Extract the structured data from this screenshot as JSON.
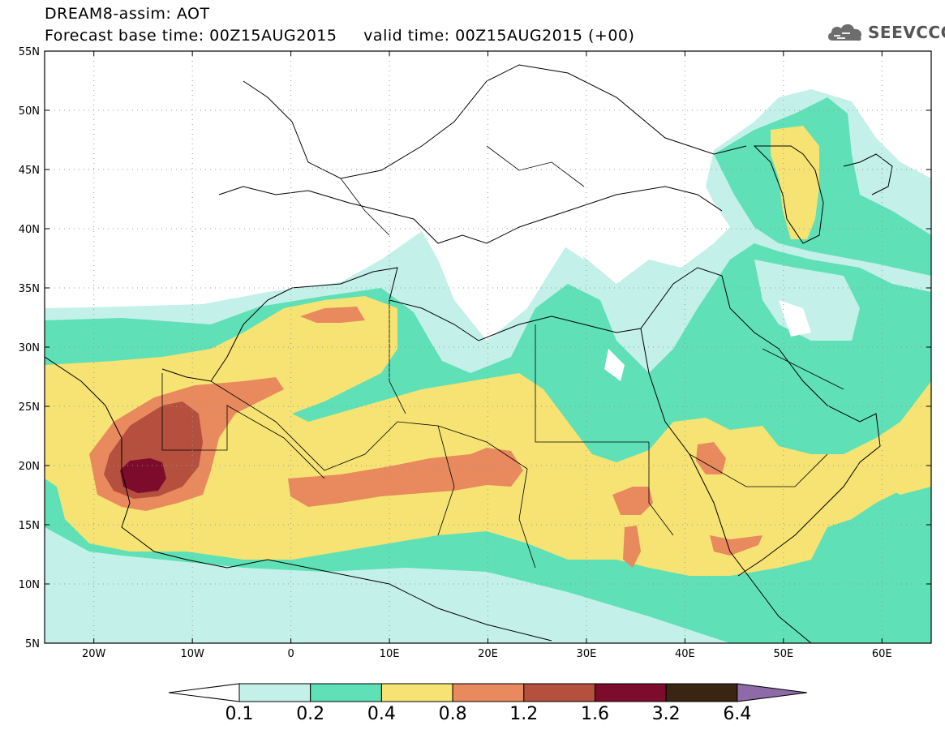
{
  "header": {
    "title_line1": "DREAM8-assim: AOT",
    "title_line2": "Forecast base time: 00Z15AUG2015     valid time: 00Z15AUG2015 (+00)",
    "logo_text": "SEEVCCC",
    "logo_icon": "cloud-icon"
  },
  "map": {
    "lon_range": [
      -25,
      65
    ],
    "lat_range": [
      5,
      55
    ],
    "lat_ticks": [
      "5N",
      "10N",
      "15N",
      "20N",
      "25N",
      "30N",
      "35N",
      "40N",
      "45N",
      "50N",
      "55N"
    ],
    "lon_ticks": [
      "20W",
      "10W",
      "0",
      "10E",
      "20E",
      "30E",
      "40E",
      "50E",
      "60E"
    ]
  },
  "colorbar": {
    "levels": [
      "0.1",
      "0.2",
      "0.4",
      "0.8",
      "1.2",
      "1.6",
      "3.2",
      "6.4"
    ],
    "colors": [
      "#ffffff",
      "#c4f0ea",
      "#5fe0b6",
      "#f6e373",
      "#e8895e",
      "#b4503d",
      "#7d0c2c",
      "#3a2412",
      "#8f6aa8"
    ]
  }
}
